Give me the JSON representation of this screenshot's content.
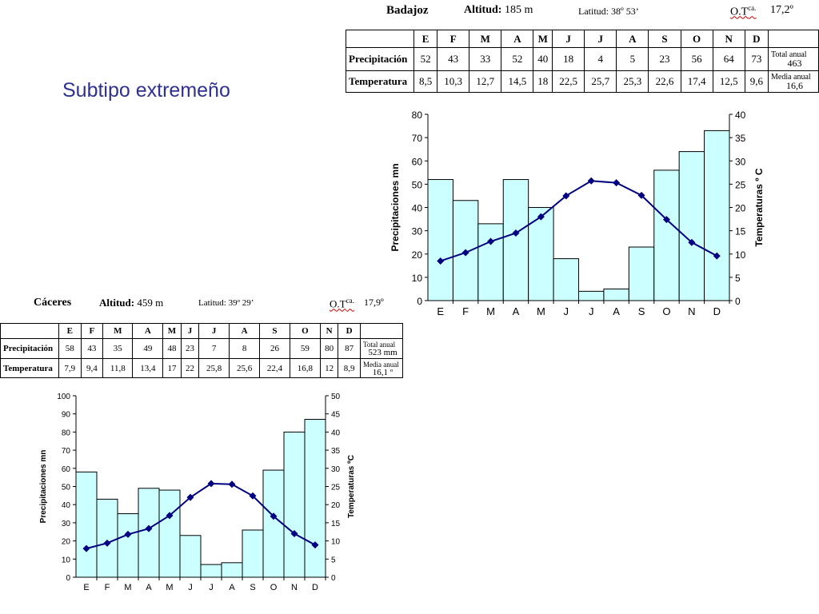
{
  "slide": {
    "title": "Subtipo extremeño"
  },
  "stations": [
    {
      "name": "Badajoz",
      "altitude_label": "Altitud:",
      "altitude_value": "185 m",
      "latitude": "Latitud: 38º 53’",
      "otca_label": "O.T",
      "otca_sup": "ca.",
      "otca_value": "17,2º",
      "months": [
        "E",
        "F",
        "M",
        "A",
        "M",
        "J",
        "J",
        "A",
        "S",
        "O",
        "N",
        "D"
      ],
      "precip_label": "Precipitación",
      "temp_label": "Temperatura",
      "precip": [
        "52",
        "43",
        "33",
        "52",
        "40",
        "18",
        "4",
        "5",
        "23",
        "56",
        "64",
        "73"
      ],
      "temp": [
        "8,5",
        "10,3",
        "12,7",
        "14,5",
        "18",
        "22,5",
        "25,7",
        "25,3",
        "22,6",
        "17,4",
        "12,5",
        "9,6"
      ],
      "total_label": "Total anual",
      "total_value": "463",
      "mean_label": "Media anual",
      "mean_value": "16,6"
    },
    {
      "name": "Cáceres",
      "altitude_label": "Altitud:",
      "altitude_value": "459 m",
      "latitude": "Latitud: 39º 29’",
      "otca_label": "O.T",
      "otca_sup": "ca.",
      "otca_value": "17,9º",
      "months": [
        "E",
        "F",
        "M",
        "A",
        "M",
        "J",
        "J",
        "A",
        "S",
        "O",
        "N",
        "D"
      ],
      "precip_label": "Precipitación",
      "temp_label": "Temperatura",
      "precip": [
        "58",
        "43",
        "35",
        "49",
        "48",
        "23",
        "7",
        "8",
        "26",
        "59",
        "80",
        "87"
      ],
      "temp": [
        "7,9",
        "9,4",
        "11,8",
        "13,4",
        "17",
        "22",
        "25,8",
        "25,6",
        "22,4",
        "16,8",
        "12",
        "8,9"
      ],
      "total_label": "Total anual",
      "total_value": "523 mm",
      "mean_label": "Media anual",
      "mean_value": "16,1 º"
    }
  ],
  "colors": {
    "bar_fill": "#ccffff",
    "bar_stroke": "#000000",
    "line": "#000080",
    "title": "#2e3192"
  },
  "chart_data": [
    {
      "type": "bar",
      "overlay": "line",
      "categories": [
        "E",
        "F",
        "M",
        "A",
        "M",
        "J",
        "J",
        "A",
        "S",
        "O",
        "N",
        "D"
      ],
      "series": [
        {
          "name": "Precipitaciones",
          "axis": "left",
          "kind": "bar",
          "values": [
            52,
            43,
            33,
            52,
            40,
            18,
            4,
            5,
            23,
            56,
            64,
            73
          ]
        },
        {
          "name": "Temperaturas",
          "axis": "right",
          "kind": "line",
          "values": [
            8.5,
            10.3,
            12.7,
            14.5,
            18,
            22.5,
            25.7,
            25.3,
            22.6,
            17.4,
            12.5,
            9.6
          ]
        }
      ],
      "ylabel": "Precipitaciones mn",
      "y2label": "Temperaturas º C",
      "ylim": [
        0,
        80
      ],
      "yticks": [
        0,
        10,
        20,
        30,
        40,
        50,
        60,
        70,
        80
      ],
      "y2lim": [
        0,
        40
      ],
      "y2ticks": [
        0,
        5,
        10,
        15,
        20,
        25,
        30,
        35,
        40
      ],
      "grid": false
    },
    {
      "type": "bar",
      "overlay": "line",
      "categories": [
        "E",
        "F",
        "M",
        "A",
        "M",
        "J",
        "J",
        "A",
        "S",
        "O",
        "N",
        "D"
      ],
      "series": [
        {
          "name": "Precipitaciones",
          "axis": "left",
          "kind": "bar",
          "values": [
            58,
            43,
            35,
            49,
            48,
            23,
            7,
            8,
            26,
            59,
            80,
            87
          ]
        },
        {
          "name": "Temperaturas",
          "axis": "right",
          "kind": "line",
          "values": [
            7.9,
            9.4,
            11.8,
            13.4,
            17,
            22,
            25.8,
            25.6,
            22.4,
            16.8,
            12,
            8.9
          ]
        }
      ],
      "ylabel": "Precipitaciones mn",
      "y2label": "Temperaturas ºC",
      "ylim": [
        0,
        100
      ],
      "yticks": [
        0,
        10,
        20,
        30,
        40,
        50,
        60,
        70,
        80,
        90,
        100
      ],
      "y2lim": [
        0,
        50
      ],
      "y2ticks": [
        0,
        5,
        10,
        15,
        20,
        25,
        30,
        35,
        40,
        45,
        50
      ],
      "grid": false
    }
  ]
}
